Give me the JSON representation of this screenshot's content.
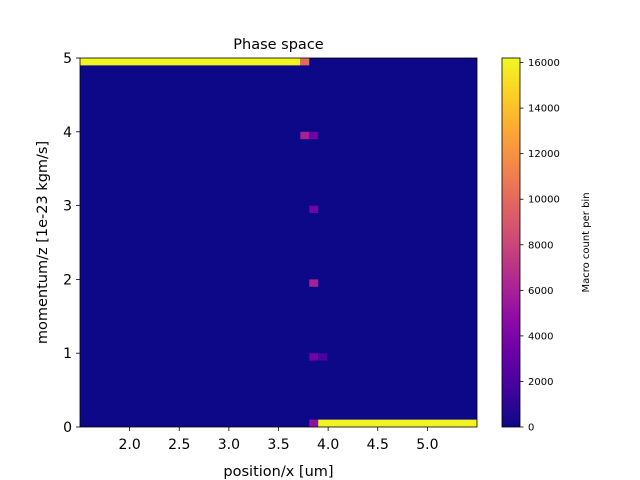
{
  "chart_data": {
    "type": "heatmap",
    "title": "Phase space",
    "xlabel": "position/x [um]",
    "ylabel": "momentum/z [1e-23 kgm/s]",
    "xlim": [
      1.5,
      5.5
    ],
    "ylim": [
      0,
      5
    ],
    "x_ticks": [
      2.0,
      2.5,
      3.0,
      3.5,
      4.0,
      4.5,
      5.0
    ],
    "x_tick_labels": [
      "2.0",
      "2.5",
      "3.0",
      "3.5",
      "4.0",
      "4.5",
      "5.0"
    ],
    "y_ticks": [
      0,
      1,
      2,
      3,
      4,
      5
    ],
    "y_tick_labels": [
      "0",
      "1",
      "2",
      "3",
      "4",
      "5"
    ],
    "colormap": "plasma",
    "background_value": 0,
    "colorbar": {
      "label": "Macro count per bin",
      "range": [
        0,
        16200
      ],
      "ticks": [
        0,
        2000,
        4000,
        6000,
        8000,
        10000,
        12000,
        14000,
        16000
      ],
      "tick_labels": [
        "0",
        "2000",
        "4000",
        "6000",
        "8000",
        "10000",
        "12000",
        "14000",
        "16000"
      ]
    },
    "cells": [
      {
        "x0": 1.5,
        "x1": 3.72,
        "y0": 4.9,
        "y1": 5.0,
        "value": 16000
      },
      {
        "x0": 3.72,
        "x1": 3.81,
        "y0": 4.9,
        "y1": 5.0,
        "value": 10000
      },
      {
        "x0": 3.72,
        "x1": 3.81,
        "y0": 3.9,
        "y1": 4.0,
        "value": 6000
      },
      {
        "x0": 3.81,
        "x1": 3.9,
        "y0": 3.9,
        "y1": 4.0,
        "value": 3500
      },
      {
        "x0": 3.81,
        "x1": 3.9,
        "y0": 2.9,
        "y1": 3.0,
        "value": 3500
      },
      {
        "x0": 3.81,
        "x1": 3.9,
        "y0": 1.9,
        "y1": 2.0,
        "value": 6000
      },
      {
        "x0": 3.81,
        "x1": 3.9,
        "y0": 0.9,
        "y1": 1.0,
        "value": 3500
      },
      {
        "x0": 3.9,
        "x1": 3.99,
        "y0": 0.9,
        "y1": 1.0,
        "value": 2000
      },
      {
        "x0": 3.81,
        "x1": 3.9,
        "y0": 0.0,
        "y1": 0.1,
        "value": 5000
      },
      {
        "x0": 3.9,
        "x1": 5.5,
        "y0": 0.0,
        "y1": 0.1,
        "value": 16000
      }
    ]
  }
}
